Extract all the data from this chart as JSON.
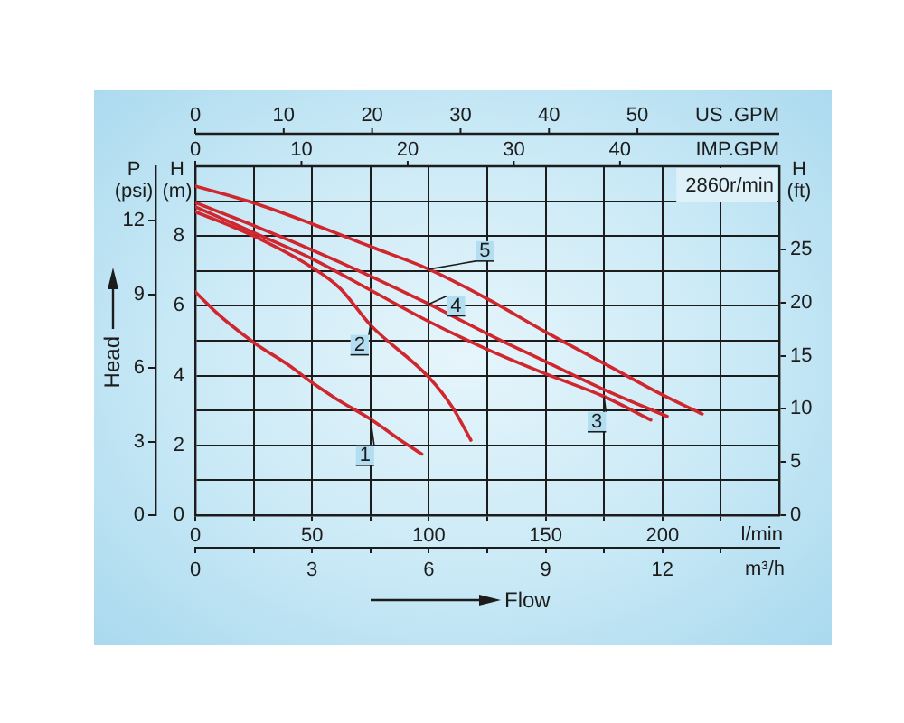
{
  "chart_data": {
    "type": "line",
    "xlabel": "l/min",
    "x2label": "m³/h",
    "ylabel": "H (m)",
    "y2label": "P (psi)",
    "y3label": "H (ft)",
    "annotations": [
      "2860r/min",
      "Flow",
      "Head",
      "US .GPM",
      "0",
      "10",
      "20",
      "30",
      "40",
      "50",
      "IMP.GPM",
      "0",
      "10",
      "20",
      "30",
      "40"
    ],
    "xlim": [
      0,
      250
    ],
    "xticks": [
      0,
      {
        "value": 25,
        "label": null
      },
      50,
      {
        "value": 75,
        "label": null
      },
      100,
      {
        "value": 125,
        "label": null
      },
      150,
      {
        "value": 175,
        "label": null
      },
      200,
      {
        "value": 225,
        "label": null
      }
    ],
    "x2lim": [
      0,
      15
    ],
    "x2ticks": [
      0,
      {
        "value": 1.5,
        "label": null
      },
      3,
      {
        "value": 4.5,
        "label": null
      },
      6,
      {
        "value": 7.5,
        "label": null
      },
      9,
      {
        "value": 10.5,
        "label": null
      },
      12,
      {
        "value": 13.5,
        "label": null
      }
    ],
    "ylim": [
      0,
      10
    ],
    "yticks": [
      0,
      {
        "value": 1,
        "label": null
      },
      2,
      {
        "value": 3,
        "label": null
      },
      4,
      {
        "value": 5,
        "label": null
      },
      6,
      {
        "value": 7,
        "label": null
      },
      8,
      {
        "value": 9,
        "label": null
      }
    ],
    "y2lim": [
      0,
      14.22
    ],
    "y2ticks": [
      0,
      3,
      6,
      9,
      12
    ],
    "y3lim": [
      0,
      32.81
    ],
    "y3ticks": [
      0,
      5,
      10,
      15,
      20,
      25
    ],
    "grid": true,
    "series": [
      {
        "name": "1",
        "color": "#d0262d",
        "x": [
          0,
          10,
          25,
          40,
          50,
          60,
          75,
          90,
          97
        ],
        "values": [
          6.4,
          5.75,
          4.95,
          4.3,
          3.8,
          3.35,
          2.75,
          2.05,
          1.75
        ]
      },
      {
        "name": "2",
        "color": "#d0262d",
        "x": [
          0,
          25,
          50,
          62,
          75,
          100,
          110,
          118
        ],
        "values": [
          8.7,
          8.0,
          7.1,
          6.5,
          5.45,
          3.95,
          3.1,
          2.15
        ]
      },
      {
        "name": "3",
        "color": "#d0262d",
        "x": [
          0,
          25,
          50,
          75,
          100,
          125,
          150,
          175,
          195
        ],
        "values": [
          8.84,
          8.1,
          7.35,
          6.45,
          5.55,
          4.75,
          4.05,
          3.4,
          2.73
        ]
      },
      {
        "name": "4",
        "color": "#d0262d",
        "x": [
          0,
          25,
          50,
          75,
          100,
          125,
          150,
          175,
          202
        ],
        "values": [
          8.96,
          8.3,
          7.6,
          6.85,
          6.05,
          5.2,
          4.4,
          3.6,
          2.83
        ]
      },
      {
        "name": "5",
        "color": "#d0262d",
        "x": [
          0,
          25,
          50,
          75,
          100,
          125,
          150,
          175,
          200,
          217
        ],
        "values": [
          9.43,
          8.95,
          8.35,
          7.7,
          7.05,
          6.2,
          5.25,
          4.35,
          3.45,
          2.9
        ]
      }
    ]
  }
}
